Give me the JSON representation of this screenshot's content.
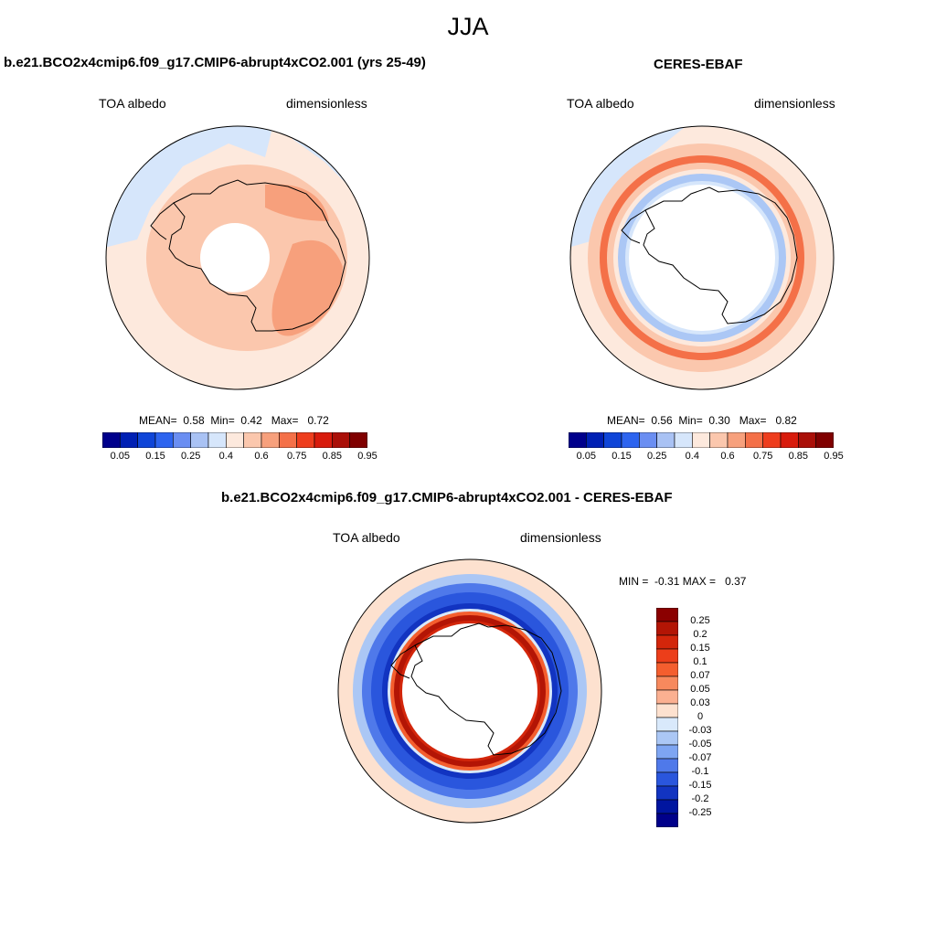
{
  "figure": {
    "title": "JJA"
  },
  "panels": [
    {
      "title": "b.e21.BCO2x4cmip6.f09_g17.CMIP6-abrupt4xCO2.001 (yrs 25-49)",
      "variable": "TOA albedo",
      "units": "dimensionless",
      "stats": {
        "mean_label": "MEAN=",
        "mean": "0.58",
        "min_label": "Min=",
        "min": "0.42",
        "max_label": "Max=",
        "max": "0.72"
      }
    },
    {
      "title": "CERES-EBAF",
      "variable": "TOA albedo",
      "units": "dimensionless",
      "stats": {
        "mean_label": "MEAN=",
        "mean": "0.56",
        "min_label": "Min=",
        "min": "0.30",
        "max_label": "Max=",
        "max": "0.82"
      }
    },
    {
      "title": "b.e21.BCO2x4cmip6.f09_g17.CMIP6-abrupt4xCO2.001 - CERES-EBAF",
      "variable": "TOA albedo",
      "units": "dimensionless",
      "stats": {
        "min_label": "MIN =",
        "min": "-0.31",
        "max_label": "MAX =",
        "max": "0.37"
      }
    }
  ],
  "colorbars": {
    "field": {
      "tick_labels": [
        "0.05",
        "0.15",
        "0.25",
        "0.4",
        "0.6",
        "0.75",
        "0.85",
        "0.95"
      ],
      "colors": [
        "#00008c",
        "#0020b4",
        "#0f45d8",
        "#2d64ef",
        "#6a8ef2",
        "#a9c2f4",
        "#d6e6fb",
        "#fde9dd",
        "#fbc7ad",
        "#f7a07c",
        "#f47048",
        "#ee3d1d",
        "#d81b0c",
        "#aa0f08",
        "#800000"
      ]
    },
    "diff": {
      "tick_labels": [
        "0.25",
        "0.2",
        "0.15",
        "0.1",
        "0.07",
        "0.05",
        "0.03",
        "0",
        "-0.03",
        "-0.05",
        "-0.07",
        "-0.1",
        "-0.15",
        "-0.2",
        "-0.25"
      ],
      "colors": [
        "#8b0000",
        "#b31505",
        "#d3260b",
        "#ec3e1a",
        "#f45e2e",
        "#f7895d",
        "#fbb091",
        "#fde1cf",
        "#d9e9fb",
        "#abc7f5",
        "#7ea5f2",
        "#4f79ea",
        "#2a56dd",
        "#1234c1",
        "#0015a0",
        "#00008a"
      ]
    }
  }
}
